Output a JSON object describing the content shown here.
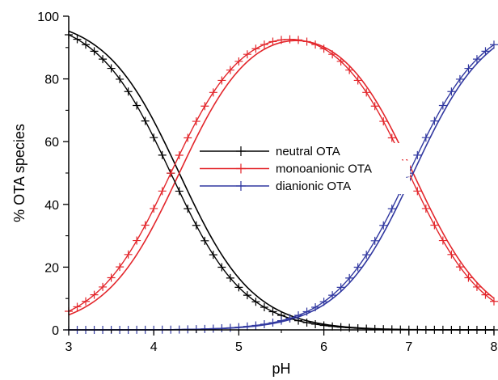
{
  "chart_data": {
    "type": "line",
    "xlabel": "pH",
    "ylabel": "% OTA species",
    "xlim": [
      3,
      8
    ],
    "ylim": [
      0,
      100
    ],
    "x_ticks": [
      "3",
      "4",
      "5",
      "6",
      "7",
      "8"
    ],
    "y_ticks": [
      "0",
      "20",
      "40",
      "60",
      "80",
      "100"
    ],
    "grid": false,
    "legend_position": "center",
    "pka": {
      "first_plain": 4.3,
      "second_plain": 7.05,
      "first_marked": 4.2,
      "second_marked": 7.0
    },
    "marker_x_step": 0.1,
    "series": [
      {
        "name": "neutral OTA",
        "style": "line",
        "color": "#000000",
        "x": [
          3,
          4,
          4.5,
          5,
          5.5,
          6,
          6.5,
          7,
          8
        ],
        "y": [
          95.2,
          66.6,
          38.7,
          16.6,
          5.9,
          1.95,
          0.6,
          0.16,
          0.0
        ]
      },
      {
        "name": "monoanionic OTA",
        "style": "line",
        "color": "#e3262b",
        "x": [
          3,
          4,
          4.5,
          5,
          5.5,
          6,
          6.5,
          7,
          8
        ],
        "y": [
          4.8,
          33.3,
          61.0,
          82.8,
          91.6,
          86.7,
          66.7,
          38.8,
          8.2
        ]
      },
      {
        "name": "dianionic OTA",
        "style": "line",
        "color": "#3138a0",
        "x": [
          3,
          4,
          4.5,
          5,
          5.5,
          6,
          6.5,
          7,
          8
        ],
        "y": [
          0.0,
          0.0,
          0.0,
          0.6,
          2.6,
          10.9,
          21.3,
          61.0,
          91.7
        ]
      },
      {
        "name": "neutral OTA",
        "style": "line+marker",
        "color": "#000000",
        "x": [
          3,
          4,
          4.5,
          5,
          5.5,
          6,
          6.5,
          7,
          8
        ],
        "y": [
          94.1,
          61.3,
          33.4,
          13.7,
          4.7,
          1.5,
          0.4,
          0.11,
          0.0
        ]
      },
      {
        "name": "monoanionic OTA",
        "style": "line+marker",
        "color": "#e3262b",
        "x": [
          3,
          4,
          4.5,
          5,
          5.5,
          6,
          6.5,
          7,
          8
        ],
        "y": [
          5.9,
          38.6,
          66.4,
          86.1,
          92.5,
          86.6,
          66.5,
          38.8,
          9.0
        ]
      },
      {
        "name": "dianionic OTA",
        "style": "line+marker",
        "color": "#3138a0",
        "x": [
          3,
          4,
          4.5,
          5,
          5.5,
          6,
          6.5,
          7,
          8
        ],
        "y": [
          0.0,
          0.0,
          0.1,
          0.5,
          2.8,
          11.9,
          33.2,
          61.1,
          90.9
        ]
      }
    ],
    "legend": [
      {
        "label": "neutral OTA",
        "color": "#000000"
      },
      {
        "label": "monoanionic OTA",
        "color": "#e3262b"
      },
      {
        "label": "dianionic OTA",
        "color": "#3138a0"
      }
    ]
  }
}
